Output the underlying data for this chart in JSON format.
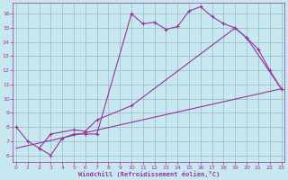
{
  "background_color": "#c8e8f0",
  "grid_color": "#9ab8cc",
  "line_color": "#993399",
  "xlabel": "Windchill (Refroidissement éolien,°C)",
  "ylim": [
    5.5,
    16.8
  ],
  "xlim": [
    -0.3,
    23.3
  ],
  "yticks": [
    6,
    7,
    8,
    9,
    10,
    11,
    12,
    13,
    14,
    15,
    16
  ],
  "xticks": [
    0,
    1,
    2,
    3,
    4,
    5,
    6,
    7,
    8,
    9,
    10,
    11,
    12,
    13,
    14,
    15,
    16,
    17,
    18,
    19,
    20,
    21,
    22,
    23
  ],
  "line1_x": [
    0,
    1,
    2,
    3,
    4,
    5,
    6,
    7,
    10,
    11,
    12,
    13,
    14,
    15,
    16,
    17,
    18,
    19,
    20,
    21,
    22,
    23
  ],
  "line1_y": [
    8.0,
    7.0,
    6.5,
    6.0,
    7.2,
    7.5,
    7.5,
    7.5,
    16.0,
    15.3,
    15.4,
    14.9,
    15.1,
    16.2,
    16.5,
    15.8,
    15.3,
    15.0,
    14.3,
    13.5,
    12.0,
    10.7
  ],
  "line2_x": [
    2,
    3,
    5,
    6,
    7,
    10,
    19,
    20,
    23
  ],
  "line2_y": [
    6.5,
    7.5,
    7.8,
    7.7,
    8.5,
    9.5,
    15.0,
    14.3,
    10.7
  ],
  "line3_x": [
    0,
    23
  ],
  "line3_y": [
    6.5,
    10.7
  ]
}
